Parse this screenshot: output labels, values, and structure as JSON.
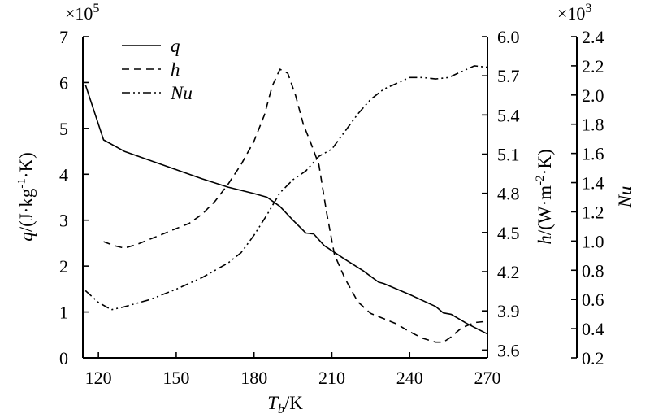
{
  "chart_data": {
    "type": "line",
    "x_axis": {
      "label_main": "T",
      "label_sub": "b",
      "label_unit": "/K",
      "range": [
        114,
        270
      ],
      "ticks": [
        120,
        150,
        180,
        210,
        240,
        270
      ],
      "tick_labels": [
        "120",
        "150",
        "180",
        "210",
        "240",
        "270"
      ]
    },
    "y_axes": [
      {
        "id": "q",
        "side": "left",
        "label_var": "q",
        "label_unit_parts": [
          "/(J·kg",
          "-1",
          "·K)"
        ],
        "multiplier_base": "×10",
        "multiplier_exp": "5",
        "range": [
          0,
          7
        ],
        "ticks": [
          0,
          1,
          2,
          3,
          4,
          5,
          6,
          7
        ],
        "tick_labels": [
          "0",
          "1",
          "2",
          "3",
          "4",
          "5",
          "6",
          "7"
        ]
      },
      {
        "id": "h",
        "side": "right-inner",
        "label_var": "h",
        "label_unit_parts": [
          "/(W·m",
          "-2",
          "·K)"
        ],
        "range": [
          3.54,
          6.0
        ],
        "ticks": [
          3.6,
          3.9,
          4.2,
          4.5,
          4.8,
          5.1,
          5.4,
          5.7,
          6.0
        ],
        "tick_labels": [
          "3.6",
          "3.9",
          "4.2",
          "4.5",
          "4.8",
          "5.1",
          "5.4",
          "5.7",
          "6.0"
        ]
      },
      {
        "id": "Nu",
        "side": "right-outer",
        "label_var": "Nu",
        "multiplier_base": "×10",
        "multiplier_exp": "3",
        "range": [
          0.2,
          2.4
        ],
        "ticks": [
          0.2,
          0.4,
          0.6,
          0.8,
          1.0,
          1.2,
          1.4,
          1.6,
          1.8,
          2.0,
          2.2,
          2.4
        ],
        "tick_labels": [
          "0.2",
          "0.4",
          "0.6",
          "0.8",
          "1.0",
          "1.2",
          "1.4",
          "1.6",
          "1.8",
          "2.0",
          "2.2",
          "2.4"
        ]
      }
    ],
    "series": [
      {
        "name": "q",
        "axis": "q",
        "style": "solid",
        "points": [
          [
            115,
            5.95
          ],
          [
            122,
            4.75
          ],
          [
            130,
            4.5
          ],
          [
            140,
            4.3
          ],
          [
            150,
            4.1
          ],
          [
            160,
            3.9
          ],
          [
            170,
            3.72
          ],
          [
            180,
            3.58
          ],
          [
            185,
            3.5
          ],
          [
            190,
            3.3
          ],
          [
            195,
            3.0
          ],
          [
            200,
            2.72
          ],
          [
            203,
            2.7
          ],
          [
            207,
            2.45
          ],
          [
            215,
            2.15
          ],
          [
            222,
            1.9
          ],
          [
            228,
            1.65
          ],
          [
            230,
            1.62
          ],
          [
            240,
            1.38
          ],
          [
            250,
            1.12
          ],
          [
            253,
            0.98
          ],
          [
            256,
            0.95
          ],
          [
            262,
            0.75
          ],
          [
            270,
            0.52
          ]
        ]
      },
      {
        "name": "h",
        "axis": "h",
        "style": "dashed",
        "points": [
          [
            122,
            4.43
          ],
          [
            126,
            4.4
          ],
          [
            130,
            4.38
          ],
          [
            135,
            4.41
          ],
          [
            140,
            4.45
          ],
          [
            145,
            4.49
          ],
          [
            150,
            4.53
          ],
          [
            155,
            4.57
          ],
          [
            160,
            4.64
          ],
          [
            165,
            4.74
          ],
          [
            170,
            4.87
          ],
          [
            175,
            5.02
          ],
          [
            180,
            5.2
          ],
          [
            184,
            5.4
          ],
          [
            187,
            5.62
          ],
          [
            190,
            5.75
          ],
          [
            193,
            5.72
          ],
          [
            196,
            5.55
          ],
          [
            199,
            5.33
          ],
          [
            202,
            5.18
          ],
          [
            205,
            5.02
          ],
          [
            208,
            4.65
          ],
          [
            211,
            4.33
          ],
          [
            215,
            4.15
          ],
          [
            220,
            3.97
          ],
          [
            225,
            3.88
          ],
          [
            230,
            3.84
          ],
          [
            235,
            3.8
          ],
          [
            240,
            3.74
          ],
          [
            245,
            3.69
          ],
          [
            250,
            3.66
          ],
          [
            253,
            3.66
          ],
          [
            256,
            3.7
          ],
          [
            260,
            3.77
          ],
          [
            265,
            3.81
          ],
          [
            270,
            3.82
          ]
        ]
      },
      {
        "name": "Nu",
        "axis": "Nu",
        "style": "dash-dot-dot",
        "points": [
          [
            115,
            0.66
          ],
          [
            120,
            0.58
          ],
          [
            125,
            0.53
          ],
          [
            130,
            0.55
          ],
          [
            140,
            0.6
          ],
          [
            150,
            0.67
          ],
          [
            160,
            0.75
          ],
          [
            170,
            0.85
          ],
          [
            175,
            0.92
          ],
          [
            180,
            1.04
          ],
          [
            185,
            1.18
          ],
          [
            190,
            1.33
          ],
          [
            195,
            1.42
          ],
          [
            200,
            1.48
          ],
          [
            205,
            1.58
          ],
          [
            210,
            1.63
          ],
          [
            220,
            1.87
          ],
          [
            225,
            1.97
          ],
          [
            230,
            2.04
          ],
          [
            235,
            2.08
          ],
          [
            240,
            2.12
          ],
          [
            245,
            2.12
          ],
          [
            250,
            2.11
          ],
          [
            255,
            2.12
          ],
          [
            260,
            2.16
          ],
          [
            265,
            2.2
          ],
          [
            270,
            2.19
          ]
        ]
      }
    ],
    "legend": {
      "placement": "top-left",
      "entries": [
        "q",
        "h",
        "Nu"
      ]
    }
  }
}
